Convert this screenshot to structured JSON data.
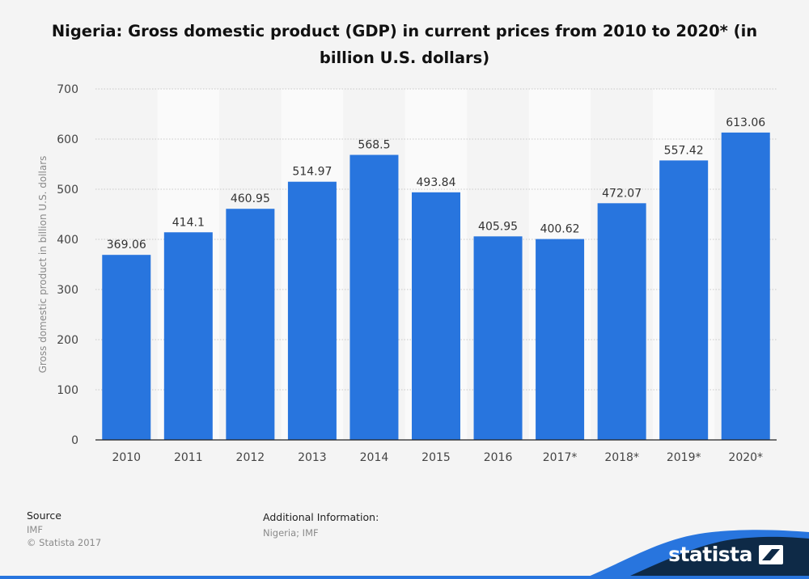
{
  "title": "Nigeria: Gross domestic product (GDP) in current prices from 2010 to 2020* (in billion U.S. dollars)",
  "chart_data": {
    "type": "bar",
    "title": "Nigeria: Gross domestic product (GDP) in current prices from 2010 to 2020* (in billion U.S. dollars)",
    "xlabel": "",
    "ylabel": "Gross domestic product in billion U.S. dollars",
    "categories": [
      "2010",
      "2011",
      "2012",
      "2013",
      "2014",
      "2015",
      "2016",
      "2017*",
      "2018*",
      "2019*",
      "2020*"
    ],
    "values": [
      369.06,
      414.1,
      460.95,
      514.97,
      568.5,
      493.84,
      405.95,
      400.62,
      472.07,
      557.42,
      613.06
    ],
    "value_labels": [
      "369.06",
      "414.1",
      "460.95",
      "514.97",
      "568.5",
      "493.84",
      "405.95",
      "400.62",
      "472.07",
      "557.42",
      "613.06"
    ],
    "ylim": [
      0,
      700
    ],
    "yticks": [
      0,
      100,
      200,
      300,
      400,
      500,
      600,
      700
    ],
    "grid": true,
    "bar_color": "#2875de",
    "alt_band_color": "#fafafa"
  },
  "footer": {
    "source_label": "Source",
    "source_value": "IMF",
    "copyright": "© Statista 2017",
    "additional_label": "Additional Information:",
    "additional_value": "Nigeria; IMF"
  },
  "brand": {
    "name": "statista",
    "icon": "statista-logo-icon",
    "wave_color": "#0e2a47",
    "accent_color": "#2875de"
  }
}
